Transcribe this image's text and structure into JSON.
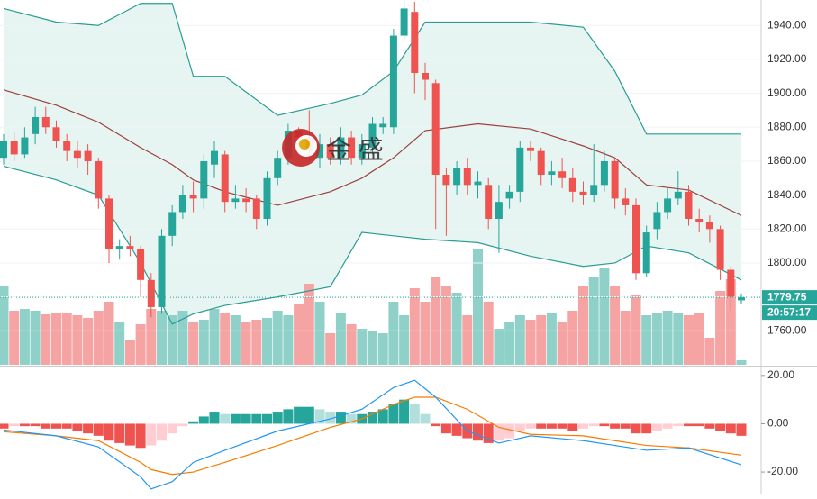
{
  "chart_data": {
    "type": "candlestick",
    "watermark": "金 盛",
    "up_color": "#26a69a",
    "down_color": "#ef5350",
    "ylim": [
      1740,
      1955
    ],
    "yticks": [
      {
        "value": 1760,
        "label": "1760.00"
      },
      {
        "value": 1780,
        "label": "1780.00"
      },
      {
        "value": 1800,
        "label": "1800.00"
      },
      {
        "value": 1820,
        "label": "1820.00"
      },
      {
        "value": 1840,
        "label": "1840.00"
      },
      {
        "value": 1860,
        "label": "1860.00"
      },
      {
        "value": 1880,
        "label": "1880.00"
      },
      {
        "value": 1900,
        "label": "1900.00"
      },
      {
        "value": 1920,
        "label": "1920.00"
      },
      {
        "value": 1940,
        "label": "1940.00"
      }
    ],
    "open": [
      1862,
      1872,
      1864,
      1876,
      1886,
      1880,
      1872,
      1866,
      1866,
      1860,
      1838,
      1808,
      1810,
      1808,
      1790,
      1774,
      1816,
      1830,
      1840,
      1838,
      1858,
      1864,
      1836,
      1838,
      1838,
      1826,
      1850,
      1862,
      1878,
      1874,
      1862,
      1870,
      1862,
      1874,
      1862,
      1868,
      1880,
      1880,
      1934,
      1948,
      1912,
      1906,
      1852,
      1846,
      1856,
      1846,
      1846,
      1826,
      1838,
      1842,
      1868,
      1866,
      1852,
      1854,
      1850,
      1842,
      1840,
      1846,
      1860,
      1838,
      1834,
      1794,
      1820,
      1830,
      1838,
      1842,
      1826,
      1824,
      1820,
      1796,
      1778
    ],
    "high": [
      1876,
      1877,
      1880,
      1892,
      1892,
      1884,
      1876,
      1872,
      1870,
      1862,
      1840,
      1814,
      1816,
      1810,
      1794,
      1820,
      1834,
      1846,
      1848,
      1864,
      1872,
      1866,
      1846,
      1844,
      1840,
      1854,
      1866,
      1882,
      1880,
      1890,
      1876,
      1874,
      1880,
      1878,
      1876,
      1886,
      1886,
      1938,
      1955,
      1954,
      1918,
      1908,
      1856,
      1860,
      1862,
      1854,
      1850,
      1846,
      1846,
      1872,
      1872,
      1868,
      1860,
      1862,
      1856,
      1848,
      1870,
      1866,
      1862,
      1844,
      1838,
      1822,
      1836,
      1844,
      1854,
      1846,
      1832,
      1828,
      1822,
      1798,
      1782
    ],
    "low": [
      1858,
      1860,
      1862,
      1870,
      1876,
      1868,
      1860,
      1856,
      1852,
      1832,
      1800,
      1802,
      1804,
      1780,
      1768,
      1770,
      1810,
      1826,
      1830,
      1832,
      1850,
      1830,
      1832,
      1830,
      1820,
      1822,
      1846,
      1858,
      1868,
      1860,
      1856,
      1858,
      1858,
      1858,
      1858,
      1864,
      1876,
      1876,
      1930,
      1900,
      1896,
      1820,
      1816,
      1840,
      1840,
      1838,
      1820,
      1806,
      1832,
      1836,
      1860,
      1846,
      1846,
      1844,
      1836,
      1834,
      1836,
      1842,
      1832,
      1828,
      1790,
      1792,
      1814,
      1826,
      1834,
      1822,
      1818,
      1812,
      1790,
      1772,
      1776
    ],
    "close": [
      1872,
      1864,
      1874,
      1886,
      1880,
      1872,
      1866,
      1862,
      1860,
      1838,
      1808,
      1810,
      1808,
      1790,
      1774,
      1816,
      1830,
      1840,
      1838,
      1860,
      1866,
      1836,
      1838,
      1836,
      1826,
      1850,
      1862,
      1878,
      1874,
      1866,
      1870,
      1862,
      1874,
      1862,
      1870,
      1882,
      1882,
      1934,
      1950,
      1912,
      1908,
      1852,
      1846,
      1856,
      1846,
      1848,
      1826,
      1836,
      1842,
      1868,
      1866,
      1852,
      1854,
      1850,
      1842,
      1840,
      1846,
      1860,
      1838,
      1834,
      1794,
      1818,
      1830,
      1838,
      1842,
      1826,
      1824,
      1820,
      1796,
      1780,
      1779.75
    ],
    "volume": [
      88,
      60,
      62,
      60,
      56,
      58,
      58,
      55,
      52,
      60,
      70,
      48,
      28,
      45,
      62,
      60,
      55,
      60,
      48,
      50,
      62,
      58,
      55,
      48,
      50,
      52,
      60,
      55,
      68,
      90,
      70,
      35,
      58,
      45,
      40,
      38,
      35,
      70,
      55,
      85,
      70,
      98,
      88,
      80,
      55,
      128,
      70,
      40,
      48,
      55,
      50,
      55,
      58,
      48,
      60,
      88,
      98,
      108,
      88,
      60,
      78,
      55,
      58,
      60,
      58,
      55,
      58,
      30,
      82,
      95,
      5
    ],
    "volume_lim": [
      0,
      405
    ],
    "volume_up_color": "#8fd1c9",
    "volume_down_color": "#f5a3a3",
    "band_x": [
      0,
      5,
      9,
      13,
      16,
      18,
      21,
      26,
      31,
      34,
      37,
      40,
      45,
      50,
      55,
      58,
      61,
      65,
      70
    ],
    "band_upper": [
      1950,
      1942,
      1940,
      1953,
      1953,
      1910,
      1910,
      1887,
      1894,
      1899,
      1913,
      1942,
      1942,
      1942,
      1939,
      1913,
      1876,
      1876,
      1876
    ],
    "band_middle": [
      1902,
      1893,
      1883,
      1868,
      1858,
      1849,
      1842,
      1834,
      1842,
      1850,
      1862,
      1878,
      1882,
      1879,
      1869,
      1862,
      1846,
      1843,
      1828
    ],
    "band_lower": [
      1857,
      1849,
      1840,
      1800,
      1764,
      1770,
      1775,
      1780,
      1786,
      1818,
      1816,
      1814,
      1812,
      1804,
      1798,
      1800,
      1810,
      1806,
      1790
    ],
    "band_color": "#2a9d94",
    "middle_color": "#9c3f3f",
    "band_fill": "#e6f4f2",
    "last_price": {
      "value": 1779.75,
      "label": "1779.75"
    },
    "countdown": "20:57:17",
    "y2lim": [
      -29.3,
      23.3
    ],
    "y2ticks": [
      {
        "value": 20,
        "label": "20.00"
      },
      {
        "value": 0,
        "label": "0.00"
      },
      {
        "value": -20,
        "label": "-20.00"
      }
    ],
    "histogram": [
      -2,
      -1,
      -1,
      -1,
      -2,
      -2,
      -2,
      -3,
      -4,
      -5,
      -7,
      -8,
      -9,
      -10,
      -9,
      -7,
      -4,
      -1,
      1,
      3,
      5,
      4,
      4,
      4,
      4,
      4,
      5,
      6,
      7,
      7,
      6,
      5,
      5,
      4,
      4,
      5,
      6,
      8,
      10,
      8,
      4,
      -1,
      -4,
      -5,
      -6,
      -7,
      -8,
      -7,
      -6,
      -3,
      -2,
      -2,
      -2,
      -2,
      -3,
      -2,
      -1,
      -1,
      -2,
      -2,
      -4,
      -4,
      -3,
      -2,
      -1,
      -1,
      -1,
      -2,
      -3,
      -4,
      -5
    ],
    "hist_colors": {
      "up_strong": "#26a69a",
      "up_weak": "#b2dfdb",
      "down_strong": "#ef5350",
      "down_weak": "#ffcdd2"
    },
    "macd_x": [
      0,
      5,
      9,
      13,
      14,
      16,
      18,
      21,
      26,
      31,
      34,
      37,
      39,
      41,
      44,
      47,
      50,
      55,
      58,
      61,
      65,
      70
    ],
    "macd": [
      -2.6,
      -5,
      -9.6,
      -22,
      -27,
      -24,
      -16,
      -11,
      -3,
      2,
      6,
      15,
      18,
      11,
      -3,
      -8,
      -5,
      -7,
      -9,
      -11,
      -10,
      -17
    ],
    "signal": [
      -3.3,
      -5,
      -7,
      -16,
      -19,
      -21,
      -20,
      -16,
      -9,
      -1.5,
      2,
      8,
      11,
      11,
      6,
      -1.5,
      -4.4,
      -5,
      -7,
      -9,
      -10,
      -13
    ],
    "macd_color": "#2196f3",
    "signal_color": "#f57c00"
  }
}
